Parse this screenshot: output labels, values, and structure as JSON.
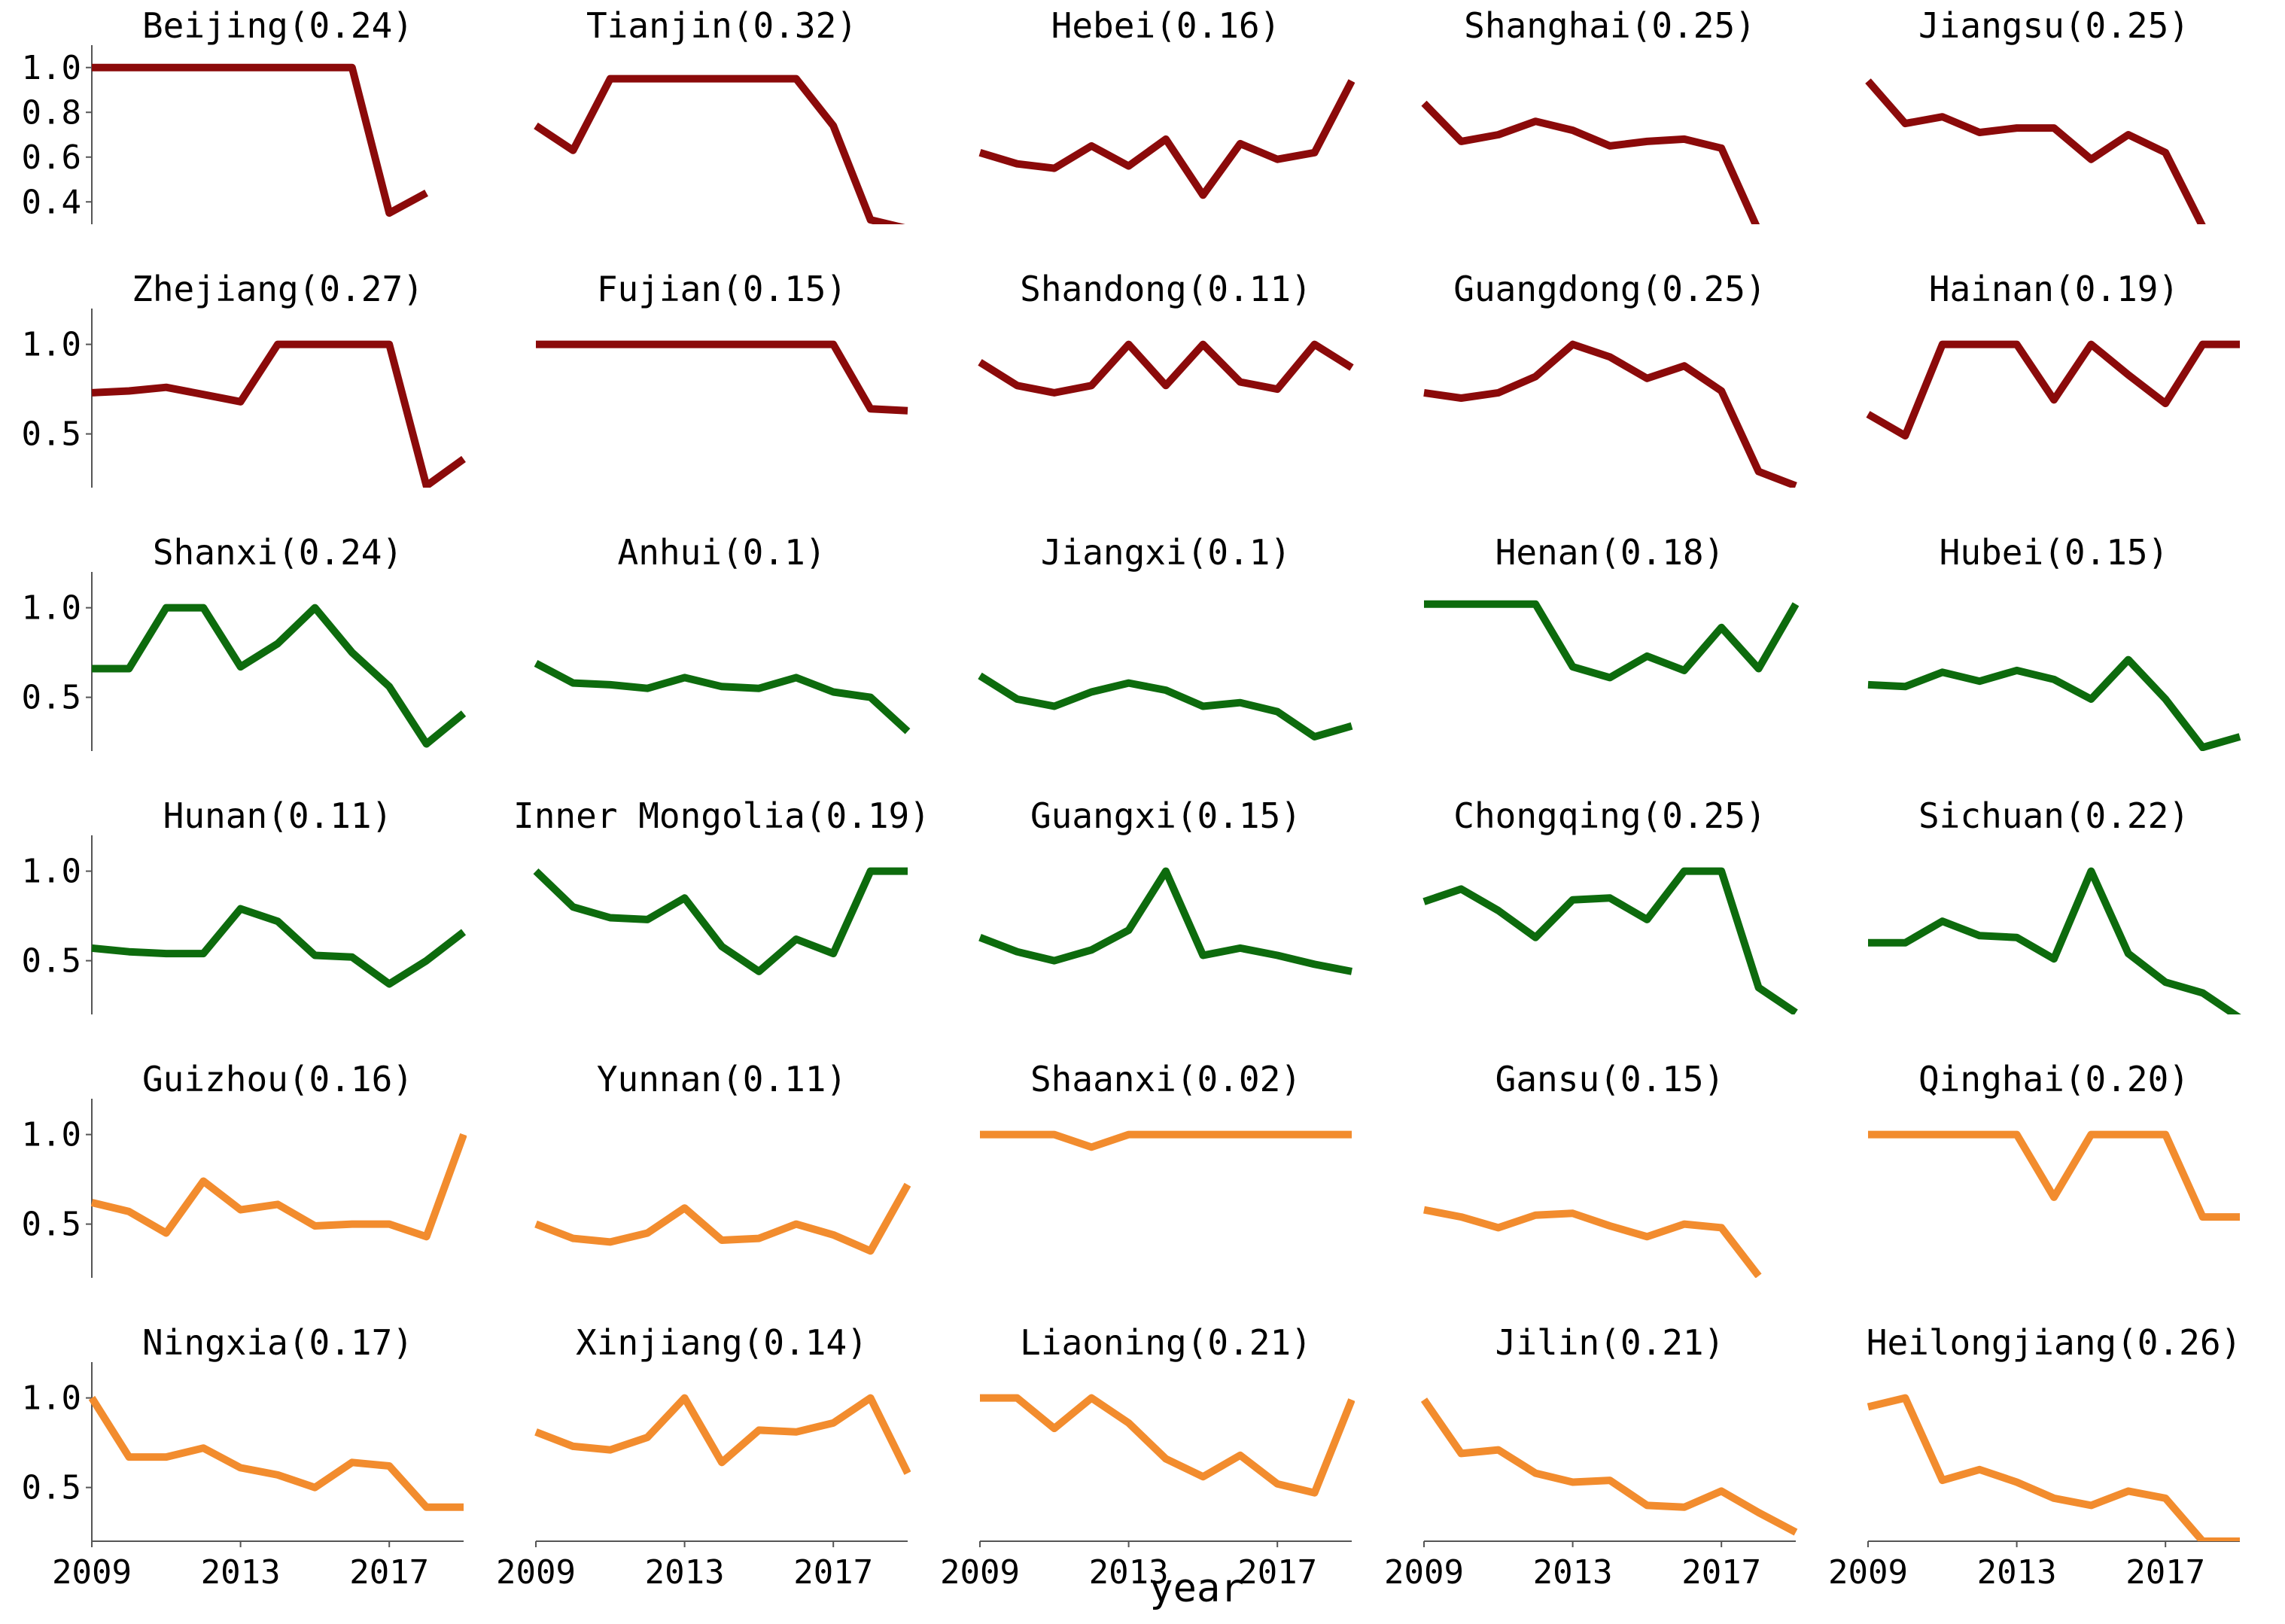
{
  "chart_data": {
    "type": "line",
    "xlabel": "year",
    "x": [
      2009,
      2010,
      2011,
      2012,
      2013,
      2014,
      2015,
      2016,
      2017,
      2018,
      2019
    ],
    "xticks": [
      "2009",
      "2013",
      "2017"
    ],
    "colors": {
      "red": "#8b0a0a",
      "green": "#0d6b0d",
      "orange": "#f28c2e",
      "axis": "#555555"
    },
    "first_row_ylim": [
      0.3,
      1.1
    ],
    "first_row_yticks": [
      "0.4",
      "0.6",
      "0.8",
      "1.0"
    ],
    "ylim": [
      0.2,
      1.2
    ],
    "yticks": [
      "0.5",
      "1.0"
    ],
    "panels": [
      {
        "title": "Beijing(0.24)",
        "color": "red",
        "values": [
          1.0,
          1.0,
          1.0,
          1.0,
          1.0,
          1.0,
          1.0,
          1.0,
          0.35,
          0.44,
          null
        ]
      },
      {
        "title": "Tianjin(0.32)",
        "color": "red",
        "values": [
          0.74,
          0.63,
          0.95,
          0.95,
          0.95,
          0.95,
          0.95,
          0.95,
          0.74,
          0.32,
          0.28
        ]
      },
      {
        "title": "Hebei(0.16)",
        "color": "red",
        "values": [
          0.62,
          0.57,
          0.55,
          0.65,
          0.56,
          0.68,
          0.43,
          0.66,
          0.59,
          0.62,
          0.94
        ]
      },
      {
        "title": "Shanghai(0.25)",
        "color": "red",
        "values": [
          0.84,
          0.67,
          0.7,
          0.76,
          0.72,
          0.65,
          0.67,
          0.68,
          0.64,
          0.27,
          null
        ]
      },
      {
        "title": "Jiangsu(0.25)",
        "color": "red",
        "values": [
          0.94,
          0.75,
          0.78,
          0.71,
          0.73,
          0.73,
          0.59,
          0.7,
          0.62,
          0.29,
          null
        ]
      },
      {
        "title": "Zhejiang(0.27)",
        "color": "red",
        "values": [
          0.73,
          0.74,
          0.76,
          0.72,
          0.68,
          1.0,
          1.0,
          1.0,
          1.0,
          0.21,
          0.36
        ]
      },
      {
        "title": "Fujian(0.15)",
        "color": "red",
        "values": [
          1.0,
          1.0,
          1.0,
          1.0,
          1.0,
          1.0,
          1.0,
          1.0,
          1.0,
          0.64,
          0.63
        ]
      },
      {
        "title": "Shandong(0.11)",
        "color": "red",
        "values": [
          0.9,
          0.77,
          0.73,
          0.77,
          1.0,
          0.77,
          1.0,
          0.79,
          0.75,
          1.0,
          0.87
        ]
      },
      {
        "title": "Guangdong(0.25)",
        "color": "red",
        "values": [
          0.73,
          0.7,
          0.73,
          0.82,
          1.0,
          0.93,
          0.81,
          0.88,
          0.74,
          0.29,
          0.21
        ]
      },
      {
        "title": "Hainan(0.19)",
        "color": "red",
        "values": [
          0.61,
          0.49,
          1.0,
          1.0,
          1.0,
          0.69,
          1.0,
          0.83,
          0.67,
          1.0,
          1.0
        ]
      },
      {
        "title": "Shanxi(0.24)",
        "color": "green",
        "values": [
          0.66,
          0.66,
          1.0,
          1.0,
          0.67,
          0.8,
          1.0,
          0.75,
          0.56,
          0.24,
          0.41
        ]
      },
      {
        "title": "Anhui(0.1)",
        "color": "green",
        "values": [
          0.69,
          0.58,
          0.57,
          0.55,
          0.61,
          0.56,
          0.55,
          0.61,
          0.53,
          0.5,
          0.31
        ]
      },
      {
        "title": "Jiangxi(0.1)",
        "color": "green",
        "values": [
          0.62,
          0.49,
          0.45,
          0.53,
          0.58,
          0.54,
          0.45,
          0.47,
          0.42,
          0.28,
          0.34
        ]
      },
      {
        "title": "Henan(0.18)",
        "color": "green",
        "values": [
          1.02,
          1.02,
          1.02,
          1.02,
          0.67,
          0.61,
          0.73,
          0.65,
          0.89,
          0.66,
          1.02
        ]
      },
      {
        "title": "Hubei(0.15)",
        "color": "green",
        "values": [
          0.57,
          0.56,
          0.64,
          0.59,
          0.65,
          0.6,
          0.49,
          0.71,
          0.49,
          0.22,
          0.28
        ]
      },
      {
        "title": "Hunan(0.11)",
        "color": "green",
        "values": [
          0.57,
          0.55,
          0.54,
          0.54,
          0.79,
          0.72,
          0.53,
          0.52,
          0.37,
          0.5,
          0.66
        ]
      },
      {
        "title": "Inner Mongolia(0.19)",
        "color": "green",
        "values": [
          1.0,
          0.8,
          0.74,
          0.73,
          0.85,
          0.58,
          0.44,
          0.62,
          0.54,
          1.0,
          1.0
        ]
      },
      {
        "title": "Guangxi(0.15)",
        "color": "green",
        "values": [
          0.63,
          0.55,
          0.5,
          0.56,
          0.67,
          1.0,
          0.53,
          0.57,
          0.53,
          0.48,
          0.44
        ]
      },
      {
        "title": "Chongqing(0.25)",
        "color": "green",
        "values": [
          0.83,
          0.9,
          0.78,
          0.63,
          0.84,
          0.85,
          0.73,
          1.0,
          1.0,
          0.35,
          0.21
        ]
      },
      {
        "title": "Sichuan(0.22)",
        "color": "green",
        "values": [
          0.6,
          0.6,
          0.72,
          0.64,
          0.63,
          0.51,
          1.0,
          0.54,
          0.38,
          0.32,
          0.18
        ]
      },
      {
        "title": "Guizhou(0.16)",
        "color": "orange",
        "values": [
          0.62,
          0.57,
          0.45,
          0.74,
          0.58,
          0.61,
          0.49,
          0.5,
          0.5,
          0.43,
          1.0
        ]
      },
      {
        "title": "Yunnan(0.11)",
        "color": "orange",
        "values": [
          0.5,
          0.42,
          0.4,
          0.45,
          0.59,
          0.41,
          0.42,
          0.5,
          0.44,
          0.35,
          0.72
        ]
      },
      {
        "title": "Shaanxi(0.02)",
        "color": "orange",
        "values": [
          1.0,
          1.0,
          1.0,
          0.93,
          1.0,
          1.0,
          1.0,
          1.0,
          1.0,
          1.0,
          1.0
        ]
      },
      {
        "title": "Gansu(0.15)",
        "color": "orange",
        "values": [
          0.58,
          0.54,
          0.48,
          0.55,
          0.56,
          0.49,
          0.43,
          0.5,
          0.48,
          0.21,
          null
        ]
      },
      {
        "title": "Qinghai(0.20)",
        "color": "orange",
        "values": [
          1.0,
          1.0,
          1.0,
          1.0,
          1.0,
          0.65,
          1.0,
          1.0,
          1.0,
          0.54,
          0.54
        ]
      },
      {
        "title": "Ningxia(0.17)",
        "color": "orange",
        "values": [
          1.0,
          0.67,
          0.67,
          0.72,
          0.61,
          0.57,
          0.5,
          0.64,
          0.62,
          0.39,
          0.39
        ]
      },
      {
        "title": "Xinjiang(0.14)",
        "color": "orange",
        "values": [
          0.81,
          0.73,
          0.71,
          0.78,
          1.0,
          0.64,
          0.82,
          0.81,
          0.86,
          1.0,
          0.58
        ]
      },
      {
        "title": "Liaoning(0.21)",
        "color": "orange",
        "values": [
          1.0,
          1.0,
          0.83,
          1.0,
          0.86,
          0.66,
          0.56,
          0.68,
          0.52,
          0.47,
          0.99
        ]
      },
      {
        "title": "Jilin(0.21)",
        "color": "orange",
        "values": [
          0.99,
          0.69,
          0.71,
          0.58,
          0.53,
          0.54,
          0.4,
          0.39,
          0.48,
          0.36,
          0.25
        ]
      },
      {
        "title": "Heilongjiang(0.26)",
        "color": "orange",
        "values": [
          0.95,
          1.0,
          0.54,
          0.6,
          0.53,
          0.44,
          0.4,
          0.48,
          0.44,
          0.2,
          0.2
        ]
      }
    ]
  }
}
